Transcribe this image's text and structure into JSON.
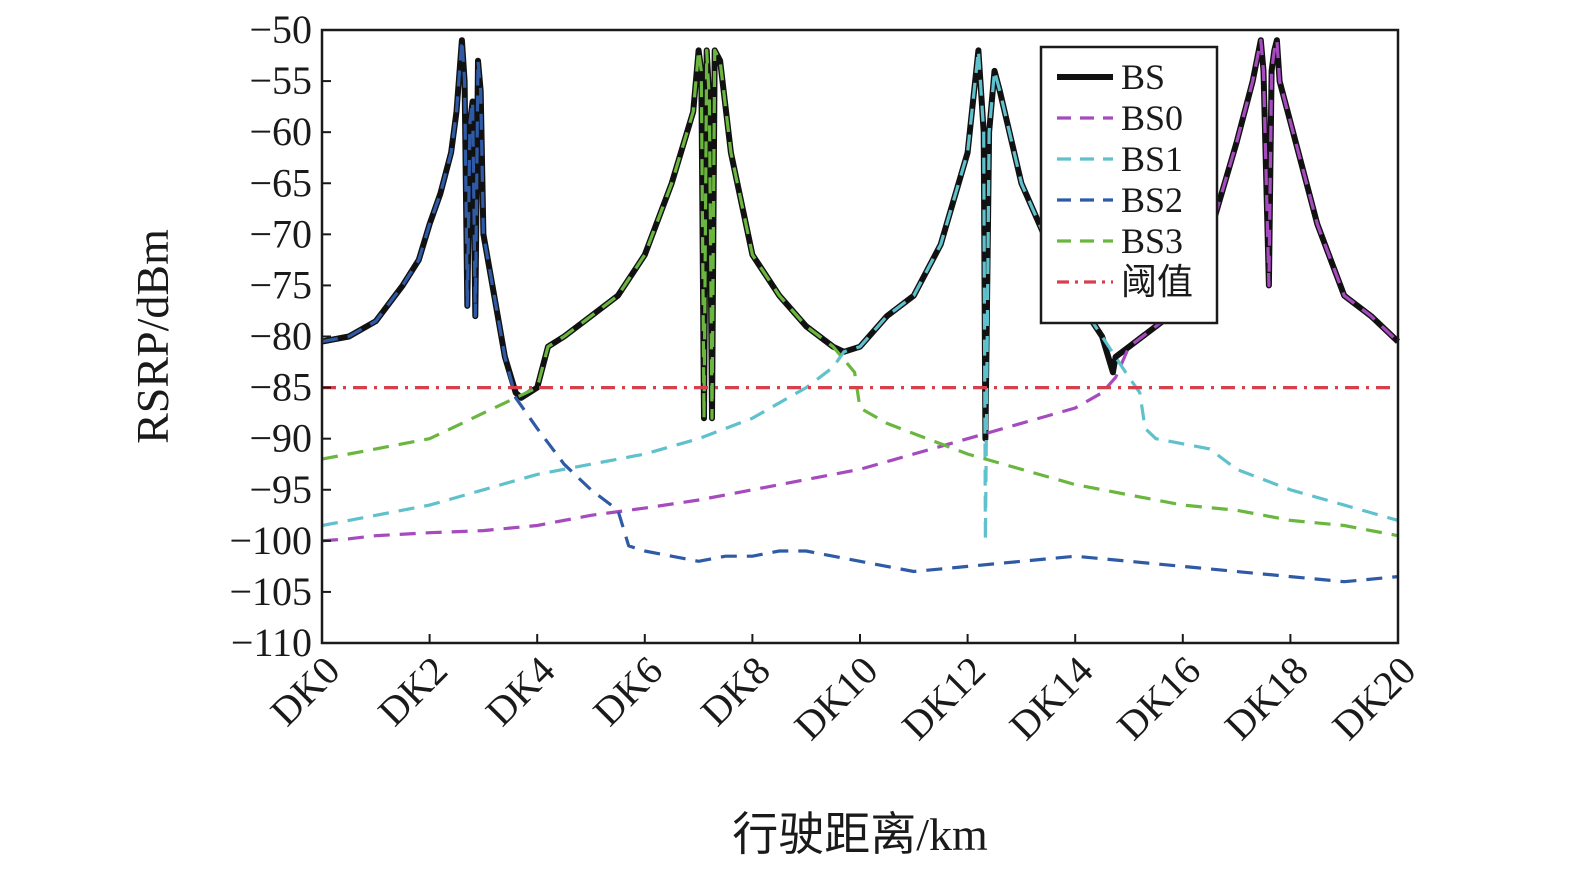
{
  "chart_data": {
    "type": "line",
    "xlabel": "行驶距离/km",
    "ylabel": "RSRP/dBm",
    "xlim": [
      0,
      20
    ],
    "ylim": [
      -110,
      -50
    ],
    "x_ticks": [
      0,
      2,
      4,
      6,
      8,
      10,
      12,
      14,
      16,
      18,
      20
    ],
    "x_tick_labels": [
      "DK0",
      "DK2",
      "DK4",
      "DK6",
      "DK8",
      "DK10",
      "DK12",
      "DK14",
      "DK16",
      "DK18",
      "DK20"
    ],
    "y_ticks": [
      -50,
      -55,
      -60,
      -65,
      -70,
      -75,
      -80,
      -85,
      -90,
      -95,
      -100,
      -105,
      -110
    ],
    "y_tick_labels": [
      "−50",
      "−55",
      "−60",
      "−65",
      "−70",
      "−75",
      "−80",
      "−85",
      "−90",
      "−95",
      "−100",
      "−105",
      "−110"
    ],
    "grid": false,
    "legend_position": "top-right",
    "series": [
      {
        "name": "BS",
        "color": "#111111",
        "style": "solid",
        "x": [
          0,
          0.5,
          1.0,
          1.5,
          1.8,
          2.0,
          2.2,
          2.4,
          2.5,
          2.6,
          2.65,
          2.7,
          2.75,
          2.8,
          2.85,
          2.9,
          2.95,
          3.0,
          3.2,
          3.4,
          3.6,
          3.7,
          4.0,
          4.2,
          4.5,
          5.0,
          5.5,
          6.0,
          6.5,
          6.9,
          7.0,
          7.05,
          7.1,
          7.15,
          7.2,
          7.25,
          7.3,
          7.4,
          7.6,
          8.0,
          8.5,
          9.0,
          9.5,
          9.7,
          10.0,
          10.5,
          11.0,
          11.5,
          12.0,
          12.2,
          12.3,
          12.33,
          12.4,
          12.5,
          12.6,
          13.0,
          13.5,
          14.0,
          14.5,
          14.7,
          14.75,
          15.0,
          15.5,
          16.0,
          16.5,
          17.0,
          17.3,
          17.45,
          17.5,
          17.6,
          17.65,
          17.7,
          17.75,
          17.8,
          18.0,
          18.5,
          19.0,
          19.5,
          20.0
        ],
        "y": [
          -80.5,
          -80,
          -78.5,
          -75,
          -72.5,
          -69,
          -66,
          -62,
          -58,
          -51,
          -55,
          -77,
          -59,
          -57,
          -78,
          -53,
          -56,
          -70,
          -76,
          -82,
          -85.5,
          -86,
          -85,
          -81,
          -80,
          -78,
          -76,
          -72,
          -65,
          -58,
          -52,
          -54,
          -88,
          -52,
          -57,
          -88,
          -52,
          -53,
          -62,
          -72,
          -76,
          -79,
          -81,
          -81.5,
          -81,
          -78,
          -76,
          -71,
          -62,
          -52,
          -60,
          -90,
          -60,
          -54,
          -56,
          -65,
          -71,
          -76,
          -80,
          -83.5,
          -82,
          -81,
          -79,
          -77,
          -70,
          -61,
          -55,
          -51,
          -54,
          -75,
          -54,
          -52,
          -51,
          -55,
          -59,
          -69,
          -76,
          -78,
          -80.5
        ]
      },
      {
        "name": "BS0",
        "color": "#a54bbd",
        "style": "dashed",
        "x": [
          0,
          0.5,
          1.0,
          2.0,
          3.0,
          4.0,
          5.0,
          6.0,
          7.0,
          8.0,
          9.0,
          10.0,
          11.0,
          12.0,
          13.0,
          14.0,
          14.5,
          14.75,
          15.0,
          15.5,
          16.0,
          16.5,
          17.0,
          17.3,
          17.45,
          17.5,
          17.6,
          17.65,
          17.7,
          17.75,
          17.8,
          18.0,
          18.5,
          19.0,
          19.5,
          20.0
        ],
        "y": [
          -100,
          -99.8,
          -99.5,
          -99.2,
          -99,
          -98.5,
          -97.5,
          -96.8,
          -96,
          -95,
          -94,
          -93,
          -91.5,
          -90,
          -88.5,
          -87,
          -85.5,
          -84,
          -81,
          -79,
          -77,
          -70,
          -61,
          -55,
          -51,
          -54,
          -75,
          -54,
          -52,
          -51,
          -55,
          -59,
          -69,
          -76,
          -78,
          -80.5
        ]
      },
      {
        "name": "BS1",
        "color": "#5ec1cc",
        "style": "dashed",
        "x": [
          0,
          1.0,
          2.0,
          3.0,
          4.0,
          5.0,
          6.0,
          7.0,
          8.0,
          9.0,
          9.5,
          9.7,
          10.0,
          10.5,
          11.0,
          11.5,
          12.0,
          12.2,
          12.3,
          12.33,
          12.4,
          12.5,
          12.6,
          13.0,
          13.5,
          14.0,
          14.5,
          15.0,
          15.2,
          15.3,
          15.5,
          16.0,
          16.5,
          17.0,
          18.0,
          19.0,
          20.0
        ],
        "y": [
          -98.5,
          -97.5,
          -96.5,
          -95,
          -93.5,
          -92.5,
          -91.5,
          -90,
          -88,
          -85,
          -83,
          -81.5,
          -81,
          -78,
          -76,
          -71,
          -62,
          -52,
          -60,
          -100,
          -60,
          -54,
          -56,
          -65,
          -71,
          -76,
          -80,
          -84,
          -85.5,
          -89,
          -90,
          -90.5,
          -91,
          -93,
          -95,
          -96.5,
          -98
        ]
      },
      {
        "name": "BS2",
        "color": "#2f5aa6",
        "style": "dashed",
        "x": [
          0,
          0.5,
          1.0,
          1.5,
          1.8,
          2.0,
          2.2,
          2.4,
          2.5,
          2.6,
          2.65,
          2.7,
          2.75,
          2.8,
          2.85,
          2.9,
          2.95,
          3.0,
          3.2,
          3.4,
          3.6,
          4.0,
          4.5,
          5.0,
          5.5,
          5.7,
          6.0,
          6.5,
          7.0,
          7.5,
          8.0,
          8.5,
          9.0,
          10.0,
          11.0,
          12.0,
          13.0,
          14.0,
          15.0,
          16.0,
          17.0,
          18.0,
          19.0,
          20.0
        ],
        "y": [
          -80.5,
          -80,
          -78.5,
          -75,
          -72.5,
          -69,
          -66,
          -62,
          -58,
          -51,
          -55,
          -77,
          -59,
          -57,
          -78,
          -53,
          -56,
          -70,
          -76,
          -82,
          -86,
          -89,
          -92.5,
          -95,
          -97,
          -100.5,
          -101,
          -101.5,
          -102,
          -101.5,
          -101.5,
          -101,
          -101,
          -102,
          -103,
          -102.5,
          -102,
          -101.5,
          -102,
          -102.5,
          -103,
          -103.5,
          -104,
          -103.5
        ]
      },
      {
        "name": "BS3",
        "color": "#6ab63f",
        "style": "dashed",
        "x": [
          0,
          1.0,
          2.0,
          3.0,
          3.6,
          4.0,
          4.2,
          4.5,
          5.0,
          5.5,
          6.0,
          6.5,
          6.9,
          7.0,
          7.05,
          7.1,
          7.15,
          7.2,
          7.25,
          7.3,
          7.4,
          7.6,
          8.0,
          8.5,
          9.0,
          9.5,
          9.9,
          10.0,
          10.5,
          11.0,
          12.0,
          13.0,
          14.0,
          15.0,
          16.0,
          17.0,
          18.0,
          19.0,
          20.0
        ],
        "y": [
          -92,
          -91,
          -90,
          -87.5,
          -86,
          -85,
          -81,
          -80,
          -78,
          -76,
          -72,
          -65,
          -58,
          -52,
          -54,
          -88,
          -52,
          -57,
          -88,
          -52,
          -53,
          -62,
          -72,
          -76,
          -79,
          -81,
          -83.5,
          -87,
          -88.5,
          -89.5,
          -91.5,
          -93,
          -94.5,
          -95.5,
          -96.5,
          -97,
          -98,
          -98.5,
          -99.5
        ]
      },
      {
        "name": "阈值",
        "color": "#d6404d",
        "style": "dashdot",
        "x": [
          0,
          20
        ],
        "y": [
          -85,
          -85
        ]
      }
    ]
  }
}
